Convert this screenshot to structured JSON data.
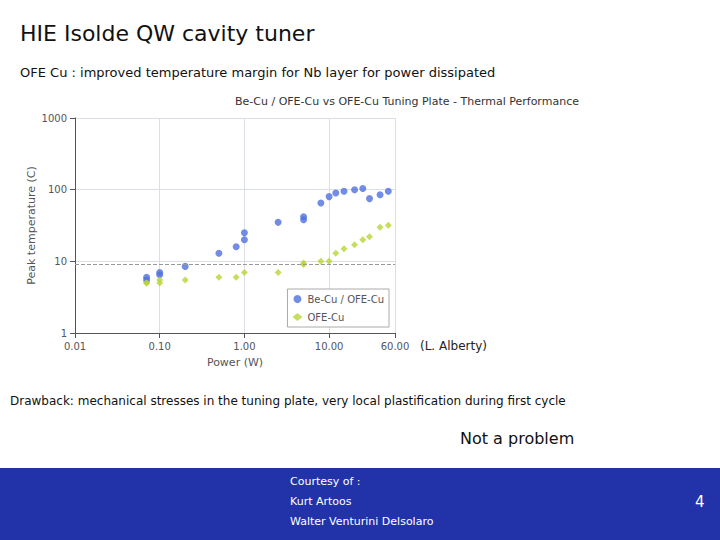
{
  "chart_data": {
    "type": "scatter",
    "title": "HIE Isolde QW cavity tuner",
    "subtitle": "OFE Cu : improved temperature margin for Nb layer for power dissipated",
    "annotations": [
      "Be-Cu / OFE-Cu vs OFE-Cu Tuning Plate - Thermal Performance",
      "(L. Alberty)",
      "Drawback: mechanical stresses in the tuning plate, very local plastification during first cycle",
      "Not a problem",
      "Courtesy of :",
      "Kurt Artoos",
      "Walter Venturini Delsolaro",
      "4"
    ],
    "xlabel": "Power (W)",
    "ylabel": "Peak temperature (C)",
    "log": true,
    "grid": true,
    "legend": "lower right",
    "series": [
      {
        "name": "Be-Cu / OFE-Cu",
        "marker": "circle",
        "x": [
          0.07,
          0.07,
          0.1,
          0.1,
          0.2,
          0.5,
          0.8,
          1.0,
          1.0,
          2.5,
          5.0,
          5.0,
          8.0,
          10.0,
          12.0,
          15.0,
          20.0,
          25.0,
          30.0,
          40.0,
          50.0
        ],
        "values": [
          6.0,
          5.5,
          7.0,
          6.5,
          8.5,
          13.0,
          16.0,
          25.0,
          20.0,
          35.0,
          38.0,
          42.0,
          65.0,
          80.0,
          90.0,
          95.0,
          100.0,
          104.0,
          75.0,
          85.0,
          95.0
        ]
      },
      {
        "name": "OFE-Cu",
        "marker": "diamond",
        "x": [
          0.07,
          0.07,
          0.1,
          0.1,
          0.2,
          0.5,
          0.8,
          1.0,
          2.5,
          5.0,
          5.0,
          8.0,
          10.0,
          12.0,
          15.0,
          20.0,
          25.0,
          30.0,
          40.0,
          50.0
        ],
        "values": [
          5.0,
          5.0,
          5.0,
          5.5,
          5.5,
          6.0,
          6.0,
          7.0,
          7.0,
          9.0,
          9.5,
          10.0,
          10.0,
          13.0,
          15.0,
          17.0,
          20.0,
          22.0,
          30.0,
          32.0
        ]
      }
    ],
    "hlines": [
      9.2
    ],
    "xlim": [
      0.01,
      60.0
    ],
    "ylim": [
      1,
      1000
    ],
    "xticks": [
      0.01,
      {
        "value": 0.1,
        "label": "0.10"
      },
      {
        "value": 1,
        "label": "1.00"
      },
      {
        "value": 10,
        "label": "10.00"
      },
      {
        "value": 60,
        "label": "60.00"
      }
    ],
    "yticks": [
      1,
      10,
      100,
      1000
    ]
  }
}
